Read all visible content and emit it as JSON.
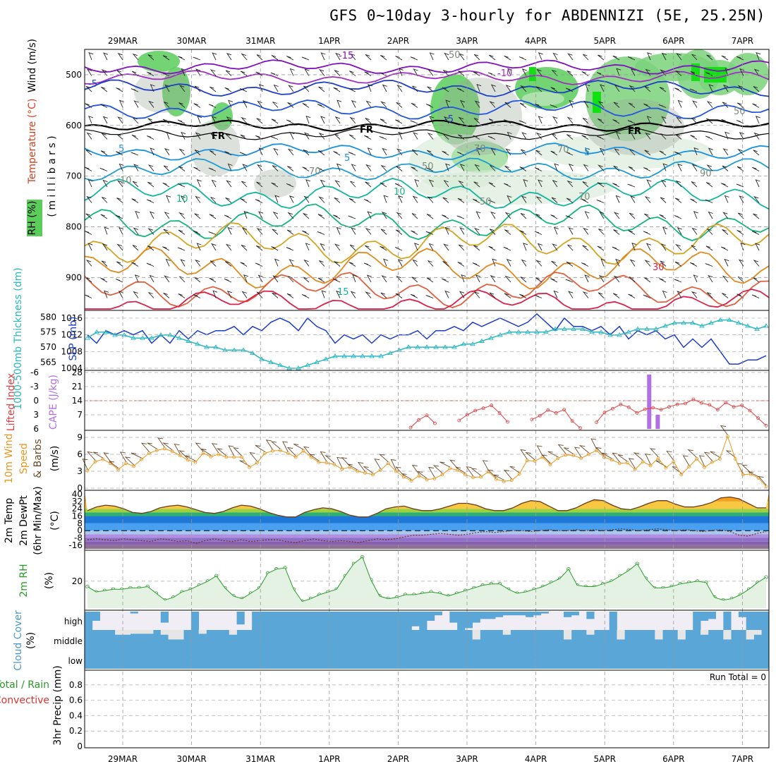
{
  "title": "GFS 0~10day 3-hourly for ABDENNIZI (5E, 25.25N)",
  "dates": [
    "29MAR",
    "30MAR",
    "31MAR",
    "1APR",
    "2APR",
    "3APR",
    "4APR",
    "5APR",
    "6APR",
    "7APR"
  ],
  "colors": {
    "blue": "#5aa6d6",
    "slp": "#1e3ec8",
    "thick": "#2ab8c0",
    "cape": "#b070e8",
    "li": "#e04040",
    "wind": "#e8961e",
    "rh2m": "#2a9a2a",
    "rhfill": "#5acd5a"
  },
  "chart_data": [
    {
      "type": "contour",
      "panel": "upper-air",
      "ylabel_wind": "Wind (m/s)",
      "ylabel_temp": "Temperature (°C)",
      "ylabel_rh": "RH (%)",
      "ylabel_units": "( m i l l i b a r s )",
      "y_ticks": [
        "500",
        "600",
        "700",
        "800",
        "900"
      ],
      "ylim": [
        450,
        965
      ],
      "contour_labels": [
        "-15",
        "-10",
        "-5",
        "-5",
        "5",
        "5",
        "5",
        "10",
        "10",
        "15",
        "30",
        "FR",
        "FR",
        "FR"
      ],
      "rh_labels": [
        "50",
        "50",
        "70",
        "70",
        "70",
        "50",
        "90",
        "10",
        "70",
        "50"
      ]
    },
    {
      "type": "line",
      "panel": "slp-thickness",
      "ylabel_left": "1000-500mb Thickness (dm)",
      "ylabel_right": "SLP (mb)",
      "left_ticks": [
        "580",
        "575",
        "570",
        "565"
      ],
      "right_ticks": [
        "1016",
        "1012",
        "1008",
        "1004"
      ],
      "series": [
        {
          "name": "SLP",
          "axis": "right",
          "ylim": [
            1004,
            1017
          ],
          "values": [
            1012,
            1010,
            1013,
            1012,
            1013,
            1012,
            1013,
            1010,
            1012,
            1010,
            1013,
            1011,
            1013,
            1012,
            1013,
            1013,
            1014,
            1012,
            1014,
            1013,
            1015,
            1016,
            1015,
            1013,
            1016,
            1014,
            1013,
            1010,
            1012,
            1011,
            1012,
            1010,
            1012,
            1011,
            1012,
            1012,
            1013,
            1011,
            1013,
            1013,
            1014,
            1013,
            1015,
            1014,
            1015,
            1016,
            1015,
            1014,
            1015,
            1017,
            1015,
            1013,
            1016,
            1014,
            1014,
            1013,
            1014,
            1012,
            1014,
            1011,
            1013,
            1012,
            1013,
            1011,
            1012,
            1009,
            1011,
            1009,
            1011,
            1008,
            1005,
            1005,
            1006,
            1006,
            1007
          ]
        },
        {
          "name": "Thickness",
          "axis": "left",
          "ylim": [
            563,
            581
          ],
          "values": [
            573,
            575,
            575,
            574,
            574,
            573,
            573,
            573,
            574,
            574,
            573,
            572,
            571,
            570,
            570,
            569,
            569,
            569,
            568,
            566,
            565,
            564,
            563,
            563,
            564,
            565,
            566,
            567,
            567,
            567,
            567,
            567,
            567,
            568,
            569,
            570,
            570,
            570,
            570,
            570,
            570,
            571,
            571,
            572,
            573,
            574,
            575,
            575,
            575,
            575,
            575,
            576,
            576,
            576,
            576,
            575,
            575,
            574,
            574,
            575,
            576,
            576,
            576,
            577,
            578,
            578,
            578,
            577,
            578,
            579,
            579,
            578,
            577,
            576,
            577
          ]
        }
      ]
    },
    {
      "type": "line",
      "panel": "lifted-index-cape",
      "ylabel_left": "Lifted Index",
      "ylabel_right": "CAPE (J/kg)",
      "li_ticks": [
        "-6",
        "-3",
        "0",
        "3",
        "6"
      ],
      "cape_ticks": [
        "28",
        "21",
        "14",
        "7"
      ],
      "li_ylim": [
        -6,
        6
      ],
      "li_values": [
        null,
        null,
        null,
        null,
        null,
        null,
        null,
        null,
        null,
        null,
        null,
        null,
        null,
        null,
        null,
        null,
        null,
        null,
        null,
        null,
        null,
        null,
        null,
        null,
        null,
        null,
        null,
        null,
        null,
        null,
        null,
        null,
        null,
        null,
        null,
        null,
        null,
        null,
        null,
        null,
        5.7,
        4.1,
        3.1,
        4.8,
        null,
        null,
        4.2,
        3.0,
        2.1,
        1.6,
        1.0,
        2.6,
        4.5,
        null,
        null,
        4.0,
        3.2,
        2.0,
        2.6,
        1.9,
        4.3,
        5.8,
        null,
        4.6,
        2.5,
        1.7,
        0.8,
        1.4,
        2.6,
        1.8,
        1.5,
        1.9,
        1.3,
        0.8,
        0.6,
        -0.3,
        0.5,
        0.9,
        1.9,
        0.4,
        1.3,
        1.0,
        2.1,
        3.7,
        5.3
      ],
      "cape_bars": [
        {
          "x": 72.6,
          "value": 27
        },
        {
          "x": 73.7,
          "value": 7
        }
      ],
      "cape_ylim": [
        0,
        28
      ]
    },
    {
      "type": "line",
      "panel": "10m-wind",
      "ylabel_a": "10m Wind",
      "ylabel_b": "Speed",
      "ylabel_c": "& Barbs",
      "ylabel_units": "(m/s)",
      "y_ticks": [
        "9",
        "6",
        "3",
        "0"
      ],
      "ylim": [
        0,
        10
      ],
      "values": [
        3.1,
        4.7,
        5.1,
        4.4,
        3.3,
        4.4,
        3.9,
        5.1,
        6.2,
        6.7,
        7.0,
        6.5,
        5.8,
        5.0,
        4.6,
        6.2,
        5.6,
        6.0,
        5.5,
        5.5,
        5.5,
        3.7,
        4.5,
        6.2,
        6.6,
        6.7,
        6.2,
        5.5,
        6.6,
        5.5,
        4.6,
        4.5,
        4.2,
        3.4,
        3.7,
        3.0,
        2.7,
        2.4,
        3.2,
        4.4,
        3.0,
        2.0,
        1.3,
        2.2,
        1.5,
        1.7,
        2.4,
        3.5,
        3.2,
        2.4,
        1.9,
        2.0,
        2.9,
        1.6,
        1.2,
        1.4,
        2.5,
        4.9,
        4.8,
        5.5,
        4.2,
        5.3,
        5.9,
        5.8,
        5.3,
        6.0,
        6.7,
        5.5,
        5.0,
        4.4,
        4.5,
        3.3,
        4.7,
        4.0,
        5.3,
        3.6,
        4.7,
        2.4,
        3.8,
        5.2,
        3.7,
        4.6,
        5.2,
        9.2,
        5.2,
        2.4,
        2.5,
        1.8,
        0.3
      ]
    },
    {
      "type": "area",
      "panel": "2m-temp",
      "ylabel_a": "2m Temp",
      "ylabel_b": "2m DewPt",
      "ylabel_c": "(6hr Min/Max)",
      "ylabel_units": "(°C)",
      "y_ticks": [
        "40",
        "32",
        "24",
        "16",
        "8",
        "0",
        "-8",
        "-16"
      ],
      "ylim": [
        -20,
        42
      ],
      "temp": [
        22,
        26,
        28,
        27,
        24,
        20,
        19,
        21,
        25,
        27,
        28,
        26,
        23,
        20,
        19,
        21,
        25,
        28,
        27,
        24,
        20,
        17,
        15,
        15,
        20,
        23,
        25,
        24,
        21,
        17,
        15,
        15,
        19,
        24,
        26,
        27,
        24,
        22,
        22,
        24,
        27,
        30,
        30,
        28,
        24,
        22,
        22,
        25,
        30,
        33,
        32,
        27,
        22,
        22,
        25,
        30,
        34,
        33,
        28,
        24,
        23,
        26,
        30,
        33,
        33,
        29,
        26,
        26,
        28,
        31,
        36,
        37,
        35,
        30,
        25,
        25
      ],
      "dewpt": [
        -10,
        -9,
        -10,
        -11,
        -9,
        -10,
        -11,
        -12,
        -9,
        -10,
        -12,
        -11,
        -14,
        -11,
        -9,
        -11,
        -12,
        -10,
        -12,
        -11,
        -10,
        -10,
        -12,
        -13,
        -11,
        -9,
        -11,
        -12,
        -11,
        -12,
        -13,
        -11,
        -9,
        -10,
        -9,
        -7,
        -5,
        -5,
        -4,
        -3,
        -4,
        -5,
        -4,
        -2,
        -1,
        -2,
        -1,
        0,
        0,
        -1,
        0,
        1,
        0,
        0,
        1,
        0,
        1,
        0,
        1,
        2,
        1,
        0,
        1,
        2,
        1,
        0,
        1,
        0,
        -1,
        0,
        1,
        -1,
        -5,
        -6,
        -3,
        -1
      ]
    },
    {
      "type": "area",
      "panel": "2m-rh",
      "ylabel": "2m RH",
      "ylabel_units": "(%)",
      "y_ticks": [
        "20"
      ],
      "ylim": [
        0,
        42
      ],
      "values": [
        16,
        12,
        13,
        14,
        14,
        15,
        15,
        16,
        11,
        6,
        8,
        12,
        14,
        17,
        20,
        24,
        15,
        9,
        7,
        11,
        15,
        26,
        29,
        30,
        14,
        5,
        7,
        10,
        12,
        14,
        24,
        33,
        38,
        21,
        9,
        7,
        8,
        10,
        10,
        11,
        12,
        11,
        9,
        11,
        13,
        15,
        17,
        18,
        18,
        14,
        11,
        12,
        14,
        16,
        19,
        22,
        29,
        17,
        16,
        16,
        18,
        20,
        24,
        28,
        33,
        22,
        15,
        15,
        16,
        18,
        19,
        20,
        19,
        8,
        6,
        7,
        10,
        14,
        19,
        23
      ]
    },
    {
      "type": "bar",
      "panel": "cloud-cover",
      "ylabel": "Cloud Cover",
      "ylabel_units": "(%)",
      "levels": [
        "high",
        "middle",
        "low"
      ],
      "high": [
        100,
        50,
        0,
        0,
        0,
        0,
        10,
        0,
        0,
        0,
        60,
        0,
        0,
        0,
        100,
        0,
        0,
        0,
        0,
        0,
        70,
        0,
        100,
        100,
        100,
        100,
        100,
        100,
        100,
        100,
        100,
        100,
        100,
        100,
        100,
        100,
        100,
        100,
        100,
        100,
        100,
        100,
        100,
        80,
        100,
        50,
        20,
        0,
        60,
        100,
        90,
        60,
        40,
        40,
        30,
        20,
        20,
        20,
        30,
        20,
        10,
        0,
        0,
        30,
        20,
        0,
        40,
        0,
        0,
        100,
        0,
        0,
        0,
        0,
        0,
        0,
        0,
        0,
        0,
        0,
        100,
        50,
        40,
        0,
        100,
        0,
        30,
        100,
        100,
        100
      ],
      "middle": [
        100,
        100,
        100,
        100,
        75,
        75,
        80,
        80,
        80,
        100,
        75,
        50,
        50,
        100,
        100,
        80,
        100,
        100,
        100,
        75,
        100,
        100,
        100,
        100,
        100,
        100,
        100,
        100,
        100,
        100,
        100,
        100,
        100,
        100,
        100,
        100,
        100,
        100,
        100,
        100,
        100,
        100,
        100,
        100,
        100,
        100,
        100,
        100,
        100,
        100,
        100,
        50,
        100,
        100,
        100,
        75,
        100,
        100,
        100,
        100,
        100,
        100,
        100,
        50,
        100,
        100,
        75,
        100,
        100,
        100,
        50,
        100,
        100,
        100,
        100,
        50,
        100,
        100,
        50,
        100,
        100,
        75,
        100,
        100,
        50,
        100,
        100,
        50,
        75,
        100
      ],
      "low": 100
    },
    {
      "type": "bar",
      "panel": "precip",
      "ylabel_a": "Total / Rain",
      "ylabel_b": "Convective",
      "ylabel_c": "3hr Precip (mm)",
      "y_ticks": [
        "0.8",
        "0.6",
        "0.4",
        "0.2",
        "0"
      ],
      "ylim": [
        0,
        0.9
      ],
      "run_total": "Run Total = 0",
      "values": []
    }
  ]
}
